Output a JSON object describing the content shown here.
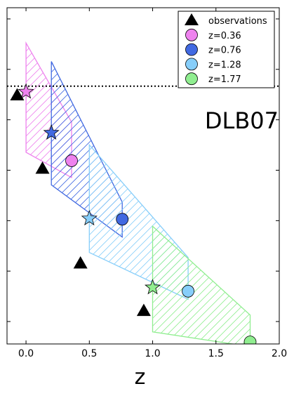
{
  "chart_data": {
    "type": "scatter",
    "title": "",
    "xlabel": "z",
    "ylabel": "",
    "xlim": [
      -0.15,
      2.0
    ],
    "ylim": [
      0.0,
      1.0
    ],
    "xticks": [
      0.0,
      0.5,
      1.0,
      1.5,
      2.0
    ],
    "xtick_labels": [
      "0.0",
      "0.5",
      "1.0",
      "1.5",
      "2.0"
    ],
    "yticks": [
      0.0667,
      0.2167,
      0.3667,
      0.5167,
      0.6667,
      0.8167,
      0.9667
    ],
    "hline_y": 0.7667,
    "annotation": "DLB07",
    "legend_position": "top-right",
    "colors": {
      "z036": "#ee82ee",
      "z076": "#4169e1",
      "z128": "#87cefa",
      "z177": "#90ee90",
      "observations": "#000000"
    },
    "legend": [
      {
        "label": "observations",
        "marker": "triangle",
        "color": "#000000"
      },
      {
        "label": "z=0.36",
        "marker": "circle",
        "color": "#ee82ee"
      },
      {
        "label": "z=0.76",
        "marker": "circle",
        "color": "#4169e1"
      },
      {
        "label": "z=1.28",
        "marker": "circle",
        "color": "#87cefa"
      },
      {
        "label": "z=1.77",
        "marker": "circle",
        "color": "#90ee90"
      }
    ],
    "observations": {
      "x": [
        -0.07,
        0.13,
        0.43,
        0.93
      ],
      "y": [
        0.74,
        0.522,
        0.24,
        0.099
      ]
    },
    "series": [
      {
        "name": "z=0.36",
        "color": "#ee82ee",
        "circle": {
          "x": 0.36,
          "y": 0.545
        },
        "star": {
          "x": 0.0,
          "y": 0.75
        },
        "region": {
          "x": [
            0.0,
            0.0,
            0.36,
            0.36,
            0.0
          ],
          "y": [
            0.895,
            0.57,
            0.495,
            0.66,
            0.895
          ]
        }
      },
      {
        "name": "z=0.76",
        "color": "#4169e1",
        "circle": {
          "x": 0.76,
          "y": 0.371
        },
        "star": {
          "x": 0.2,
          "y": 0.628
        },
        "region": {
          "x": [
            0.2,
            0.2,
            0.76,
            0.76,
            0.2
          ],
          "y": [
            0.84,
            0.473,
            0.318,
            0.422,
            0.84
          ]
        }
      },
      {
        "name": "z=1.28",
        "color": "#87cefa",
        "circle": {
          "x": 1.28,
          "y": 0.157
        },
        "star": {
          "x": 0.5,
          "y": 0.373
        },
        "region": {
          "x": [
            0.5,
            0.5,
            1.28,
            1.28,
            0.5
          ],
          "y": [
            0.592,
            0.272,
            0.133,
            0.257,
            0.592
          ]
        }
      },
      {
        "name": "z=1.77",
        "color": "#90ee90",
        "circle": {
          "x": 1.77,
          "y": 0.006
        },
        "star": {
          "x": 1.0,
          "y": 0.168
        },
        "region": {
          "x": [
            1.0,
            1.0,
            1.77,
            1.77,
            1.0
          ],
          "y": [
            0.35,
            0.036,
            -0.008,
            0.086,
            0.35
          ]
        }
      }
    ]
  }
}
